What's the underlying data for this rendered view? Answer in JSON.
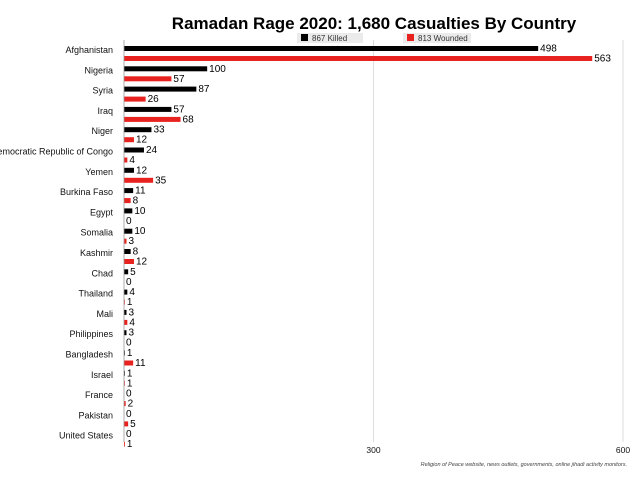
{
  "chart_data": {
    "type": "bar",
    "orientation": "horizontal",
    "title": "Ramadan Rage 2020: 1,680 Casualties By Country",
    "categories": [
      "Afghanistan",
      "Nigeria",
      "Syria",
      "Iraq",
      "Niger",
      "Democratic Republic of Congo",
      "Yemen",
      "Burkina Faso",
      "Egypt",
      "Somalia",
      "Kashmir",
      "Chad",
      "Thailand",
      "Mali",
      "Philippines",
      "Bangladesh",
      "Israel",
      "France",
      "Pakistan",
      "United States"
    ],
    "series": [
      {
        "name": "867 Killed",
        "color": "#000000",
        "values": [
          498,
          100,
          87,
          57,
          33,
          24,
          12,
          11,
          10,
          10,
          8,
          5,
          4,
          3,
          3,
          1,
          1,
          0,
          0,
          0
        ]
      },
      {
        "name": "813 Wounded",
        "color": "#e8231f",
        "values": [
          563,
          57,
          26,
          68,
          12,
          4,
          35,
          8,
          0,
          3,
          12,
          0,
          1,
          4,
          0,
          11,
          1,
          2,
          5,
          1
        ]
      }
    ],
    "xlim": [
      0,
      600
    ],
    "x_ticks": [
      "300",
      "600"
    ],
    "grid": "vertical",
    "legend_position": "top",
    "source_note": "Religion of Peace website, news outlets, governments, online jihadi activity monitors."
  }
}
